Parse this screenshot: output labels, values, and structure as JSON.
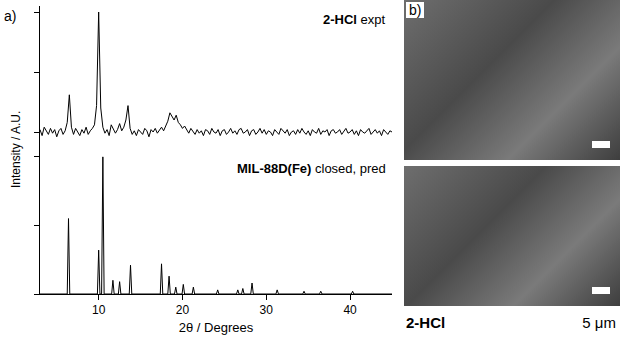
{
  "chart_data": {
    "type": "line",
    "panel_label": "a)",
    "x_label": "2θ / Degrees",
    "y_label": "Intensity / A.U.",
    "xlim": [
      3,
      45
    ],
    "xticks": [
      10,
      20,
      30,
      40
    ],
    "ylim": [
      0,
      105
    ],
    "yticks": [
      0,
      50,
      100
    ],
    "y2lim": [
      -15,
      105
    ],
    "y2ticks": [
      0,
      50,
      100
    ],
    "tick_labels": "x",
    "grid": false,
    "series": [
      {
        "name": "2-HCl expt",
        "color": "#000000",
        "axis": "y2",
        "x": [
          3,
          3.25,
          3.5,
          3.75,
          4,
          4.25,
          4.5,
          4.75,
          5,
          5.25,
          5.5,
          5.75,
          6,
          6.25,
          6.5,
          6.75,
          7,
          7.25,
          7.5,
          7.75,
          8,
          8.25,
          8.5,
          8.75,
          9,
          9.25,
          9.5,
          9.75,
          10,
          10.25,
          10.5,
          10.75,
          11,
          11.25,
          11.5,
          11.75,
          12,
          12.25,
          12.5,
          12.75,
          13,
          13.25,
          13.5,
          13.75,
          14,
          14.25,
          14.5,
          14.75,
          15,
          15.25,
          15.5,
          15.75,
          16,
          16.25,
          16.5,
          16.75,
          17,
          17.25,
          17.5,
          17.75,
          18,
          18.25,
          18.5,
          18.75,
          19,
          19.25,
          19.5,
          19.75,
          20,
          20.25,
          20.5,
          20.75,
          21,
          21.25,
          21.5,
          21.75,
          22,
          22.25,
          22.5,
          22.75,
          23,
          23.25,
          23.5,
          23.75,
          24,
          24.25,
          24.5,
          24.75,
          25,
          25.25,
          25.5,
          25.75,
          26,
          26.25,
          26.5,
          26.75,
          27,
          27.25,
          27.5,
          27.75,
          28,
          28.25,
          28.5,
          28.75,
          29,
          29.25,
          29.5,
          29.75,
          30,
          30.25,
          30.5,
          30.75,
          31,
          31.25,
          31.5,
          31.75,
          32,
          32.25,
          32.5,
          32.75,
          33,
          33.25,
          33.5,
          33.75,
          34,
          34.25,
          34.5,
          34.75,
          35,
          35.25,
          35.5,
          35.75,
          36,
          36.25,
          36.5,
          36.75,
          37,
          37.25,
          37.5,
          37.75,
          38,
          38.25,
          38.5,
          38.75,
          39,
          39.25,
          39.5,
          39.75,
          40,
          40.25,
          40.5,
          40.75,
          41,
          41.25,
          41.5,
          41.75,
          42,
          42.25,
          42.5,
          42.75,
          43,
          43.25,
          43.5,
          43.75,
          44,
          44.25,
          44.5,
          44.75,
          45
        ],
        "values": [
          2,
          -3,
          4,
          1,
          -2,
          3,
          -1,
          2,
          -4,
          1,
          3,
          -2,
          1,
          8,
          31,
          4,
          -2,
          3,
          0,
          -3,
          2,
          -1,
          4,
          -2,
          1,
          3,
          6,
          22,
          100,
          20,
          4,
          -1,
          2,
          -3,
          6,
          3,
          -1,
          2,
          7,
          1,
          4,
          10,
          22,
          3,
          -2,
          1,
          -3,
          2,
          0,
          -2,
          3,
          1,
          -4,
          2,
          0,
          3,
          -1,
          2,
          4,
          1,
          5,
          9,
          16,
          13,
          10,
          14,
          8,
          6,
          3,
          5,
          2,
          -1,
          3,
          0,
          -2,
          2,
          -1,
          1,
          -3,
          2,
          1,
          -2,
          3,
          0,
          -1,
          2,
          -3,
          1,
          2,
          -2,
          0,
          3,
          -1,
          1,
          -2,
          2,
          3,
          -1,
          0,
          2,
          -3,
          1,
          2,
          -2,
          0,
          3,
          -1,
          2,
          -2,
          1,
          0,
          -3,
          2,
          0,
          -2,
          3,
          1,
          -1,
          2,
          -3,
          0,
          1,
          -2,
          2,
          -1,
          3,
          0,
          -2,
          1,
          -3,
          2,
          0,
          -1,
          3,
          -2,
          1,
          0,
          2,
          -3,
          1,
          2,
          -1,
          0,
          2,
          -2,
          1,
          3,
          -1,
          0,
          2,
          -2,
          1,
          -3,
          2,
          0,
          -1,
          1,
          3,
          -2,
          0,
          2,
          -1,
          1,
          -3,
          2,
          0,
          -2,
          1,
          0
        ]
      },
      {
        "name": "MIL-88D(Fe) closed, pred",
        "color": "#000000",
        "x": [
          3,
          6.25,
          6.4,
          6.55,
          9.85,
          10.0,
          10.15,
          10.35,
          10.5,
          10.65,
          11.55,
          11.7,
          11.85,
          12.35,
          12.5,
          12.65,
          13.65,
          13.8,
          13.95,
          17.35,
          17.5,
          17.65,
          18.25,
          18.4,
          18.55,
          19.05,
          19.2,
          19.35,
          19.95,
          20.1,
          20.25,
          21.15,
          21.3,
          21.45,
          24.05,
          24.2,
          24.35,
          26.45,
          26.6,
          26.75,
          27.05,
          27.2,
          27.35,
          28.15,
          28.3,
          28.45,
          31.15,
          31.3,
          31.45,
          34.35,
          34.5,
          34.65,
          36.35,
          36.5,
          36.65,
          40.15,
          40.3,
          40.45,
          45
        ],
        "values": [
          0,
          0,
          55,
          0,
          0,
          32,
          0,
          0,
          100,
          0,
          0,
          10,
          0,
          0,
          9,
          0,
          0,
          21,
          0,
          0,
          22,
          0,
          0,
          13,
          0,
          0,
          5,
          0,
          0,
          7,
          0,
          0,
          5,
          0,
          0,
          3,
          0,
          0,
          3,
          0,
          0,
          4,
          0,
          0,
          8,
          0,
          0,
          3,
          0,
          0,
          2,
          0,
          0,
          2,
          0,
          0,
          2,
          0,
          0
        ]
      }
    ]
  },
  "image_panel": {
    "panel_label": "b)",
    "caption": "2-HCl",
    "scale_bar": "5 μm"
  }
}
